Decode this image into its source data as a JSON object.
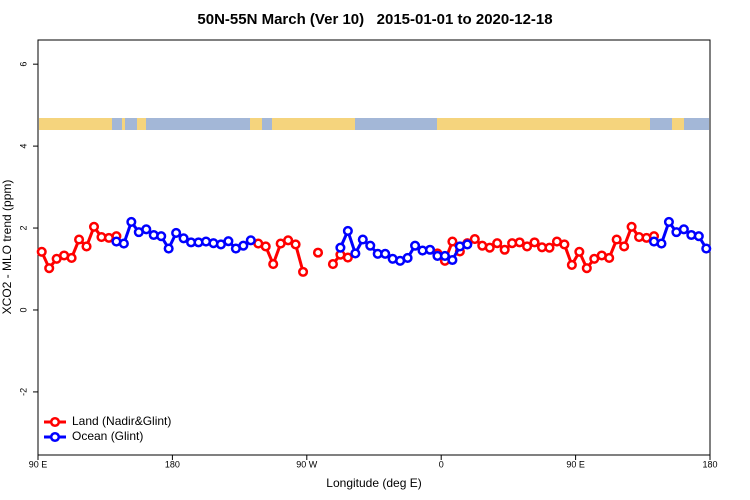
{
  "chart_data": {
    "type": "line",
    "title": "50N-55N March (Ver 10)   2015-01-01 to 2020-12-18",
    "x_label": "Longitude (deg E)",
    "y_label": "XCO2 - MLO trend (ppm)",
    "x": [
      92.5,
      97.5,
      102.5,
      107.5,
      112.5,
      117.5,
      122.5,
      127.5,
      132.5,
      137.5,
      142.5,
      147.5,
      152.5,
      157.5,
      162.5,
      167.5,
      172.5,
      177.5,
      182.5,
      187.5,
      192.5,
      197.5,
      202.5,
      207.5,
      212.5,
      217.5,
      222.5,
      227.5,
      232.5,
      237.5,
      242.5,
      247.5,
      252.5,
      257.5,
      262.5,
      267.5,
      272.5,
      277.5,
      282.5,
      287.5,
      292.5,
      297.5,
      302.5,
      307.5,
      312.5,
      317.5,
      322.5,
      327.5,
      332.5,
      337.5,
      342.5,
      347.5,
      352.5,
      357.5,
      362.5,
      367.5,
      372.5,
      377.5,
      382.5,
      387.5,
      392.5,
      397.5,
      402.5,
      407.5,
      412.5,
      417.5,
      422.5,
      427.5,
      432.5,
      437.5,
      442.5,
      447.5,
      452.5,
      457.5,
      462.5,
      467.5,
      472.5,
      477.5,
      482.5,
      487.5,
      492.5,
      497.5,
      502.5,
      507.5,
      512.5,
      517.5,
      522.5,
      527.5,
      532.5,
      537.5
    ],
    "series": [
      {
        "name": "Land (Nadir&Glint)",
        "color": "#ff0000",
        "values": [
          1.42,
          1.02,
          1.25,
          1.33,
          1.27,
          1.72,
          1.55,
          2.03,
          1.78,
          1.76,
          1.8,
          null,
          null,
          null,
          null,
          null,
          null,
          null,
          null,
          null,
          null,
          null,
          null,
          null,
          null,
          null,
          null,
          null,
          null,
          1.62,
          1.55,
          1.12,
          1.62,
          1.7,
          1.6,
          0.93,
          null,
          1.4,
          null,
          1.12,
          1.35,
          1.28,
          null,
          null,
          null,
          null,
          null,
          null,
          null,
          null,
          null,
          null,
          null,
          1.38,
          1.2,
          1.67,
          1.43,
          1.63,
          1.73,
          1.57,
          1.52,
          1.63,
          1.47,
          1.63,
          1.65,
          1.55,
          1.65,
          1.53,
          1.52,
          1.67,
          1.6,
          1.1,
          1.42,
          1.02,
          1.25,
          1.33,
          1.27,
          1.72,
          1.55,
          2.03,
          1.78,
          1.76,
          1.8,
          null,
          null,
          null,
          null,
          null,
          null,
          null
        ]
      },
      {
        "name": "Ocean (Glint)",
        "color": "#0000ff",
        "values": [
          null,
          null,
          null,
          null,
          null,
          null,
          null,
          null,
          null,
          null,
          1.67,
          1.62,
          2.15,
          1.9,
          1.97,
          1.83,
          1.8,
          1.5,
          1.88,
          1.75,
          1.65,
          1.65,
          1.67,
          1.63,
          1.6,
          1.68,
          1.5,
          1.57,
          1.7,
          null,
          null,
          null,
          null,
          null,
          null,
          null,
          null,
          null,
          null,
          null,
          1.52,
          1.93,
          1.38,
          1.72,
          1.57,
          1.37,
          1.37,
          1.25,
          1.2,
          1.27,
          1.57,
          1.45,
          1.47,
          1.32,
          1.32,
          1.22,
          1.55,
          1.6,
          null,
          null,
          null,
          null,
          null,
          null,
          null,
          null,
          null,
          null,
          null,
          null,
          null,
          null,
          null,
          null,
          null,
          null,
          null,
          null,
          null,
          null,
          null,
          null,
          1.67,
          1.62,
          2.15,
          1.9,
          1.97,
          1.83,
          1.8,
          1.5
        ]
      }
    ],
    "xlim": [
      90,
      540
    ],
    "xticks": [
      {
        "value": 90,
        "label": "90 E"
      },
      180,
      {
        "value": 270,
        "label": "90 W"
      },
      {
        "value": 360,
        "label": "0"
      },
      {
        "value": 450,
        "label": "90 E"
      },
      {
        "value": 540,
        "label": "180"
      }
    ],
    "ylim": [
      -3.54,
      6.59
    ],
    "yticks": [
      -2,
      0,
      2,
      4,
      6
    ],
    "legend": "bottom-left"
  }
}
